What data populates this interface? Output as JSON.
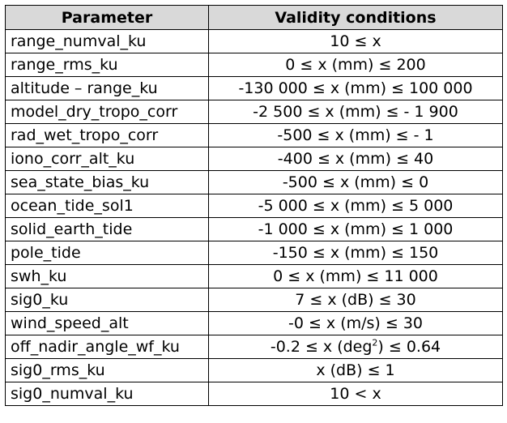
{
  "table": {
    "headers": [
      "Parameter",
      "Validity conditions"
    ],
    "rows": [
      {
        "parameter": "range_numval_ku",
        "condition": "10 ≤  x"
      },
      {
        "parameter": "range_rms_ku",
        "condition": "0 ≤ x (mm) ≤ 200"
      },
      {
        "parameter": "altitude – range_ku",
        "condition": "-130 000 ≤ x (mm)  ≤ 100 000"
      },
      {
        "parameter": "model_dry_tropo_corr",
        "condition": "-2 500 ≤ x (mm) ≤ - 1 900"
      },
      {
        "parameter": "rad_wet_tropo_corr",
        "condition": "-500 ≤ x (mm) ≤ - 1"
      },
      {
        "parameter": "iono_corr_alt_ku",
        "condition": "-400 ≤ x (mm) ≤ 40"
      },
      {
        "parameter": "sea_state_bias_ku",
        "condition": "-500 ≤ x (mm) ≤ 0"
      },
      {
        "parameter": "ocean_tide_sol1",
        "condition": "-5 000 ≤ x (mm) ≤ 5 000"
      },
      {
        "parameter": "solid_earth_tide",
        "condition": "-1 000 ≤ x (mm) ≤ 1 000"
      },
      {
        "parameter": "pole_tide",
        "condition": "-150 ≤ x (mm) ≤ 150"
      },
      {
        "parameter": "swh_ku",
        "condition": "0 ≤ x (mm) ≤ 11 000"
      },
      {
        "parameter": "sig0_ku",
        "condition": "7 ≤ x (dB) ≤ 30"
      },
      {
        "parameter": "wind_speed_alt",
        "condition": "-0 ≤ x (m/s) ≤ 30"
      },
      {
        "parameter": "off_nadir_angle_wf_ku",
        "condition_parts": [
          "-0.2 ≤ x (deg",
          "2",
          ") ≤ 0.64"
        ]
      },
      {
        "parameter": "sig0_rms_ku",
        "condition": "x (dB) ≤ 1"
      },
      {
        "parameter": "sig0_numval_ku",
        "condition": "10 < x"
      }
    ]
  }
}
